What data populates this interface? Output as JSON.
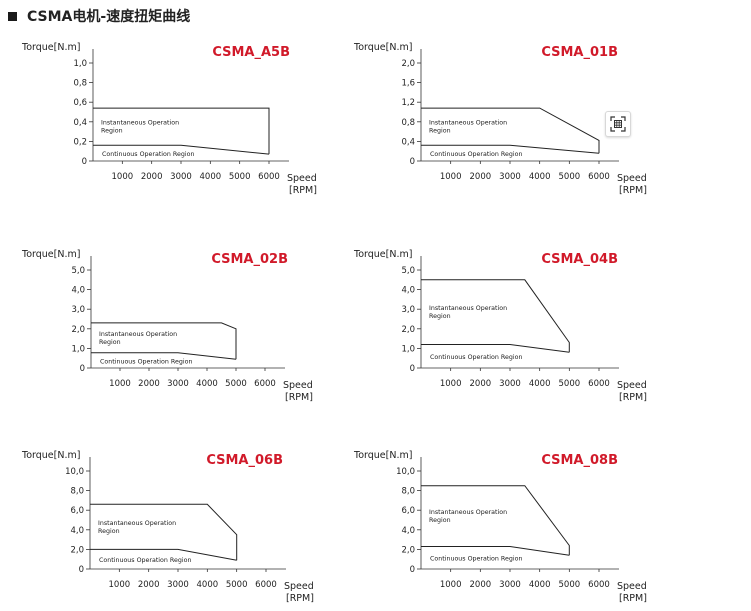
{
  "header": {
    "title": "CSMA电机-速度扭矩曲线"
  },
  "icons": {
    "float_button": "scan-text-icon"
  },
  "chart_data": [
    {
      "type": "line",
      "title": "CSMA_A5B",
      "ylabel": "Torque[N.m]",
      "xlabel": "Speed",
      "xlabel_unit": "[RPM]",
      "x_ticks": [
        "1000",
        "2000",
        "3000",
        "4000",
        "5000",
        "6000"
      ],
      "y_ticks": [
        "0",
        "0,2",
        "0,4",
        "0,6",
        "0,8",
        "1,0"
      ],
      "xlim": [
        0,
        6000
      ],
      "ylim": [
        0,
        1.0
      ],
      "region_labels": [
        "Instantaneous Operation",
        "Region",
        "Continuous Operation Region"
      ],
      "series": [
        {
          "name": "Instantaneous Operation Region",
          "x": [
            0,
            6000,
            6000
          ],
          "y": [
            0.54,
            0.54,
            0.07
          ]
        },
        {
          "name": "Continuous Operation Region",
          "x": [
            0,
            3000,
            6000
          ],
          "y": [
            0.16,
            0.16,
            0.07
          ]
        }
      ]
    },
    {
      "type": "line",
      "title": "CSMA_01B",
      "ylabel": "Torque[N.m]",
      "xlabel": "Speed",
      "xlabel_unit": "[RPM]",
      "x_ticks": [
        "1000",
        "2000",
        "3000",
        "4000",
        "5000",
        "6000"
      ],
      "y_ticks": [
        "0",
        "0,4",
        "0,8",
        "1,2",
        "1,6",
        "2,0"
      ],
      "xlim": [
        0,
        6000
      ],
      "ylim": [
        0,
        2.0
      ],
      "region_labels": [
        "Instantaneous Operation",
        "Region",
        "Continuous Operation Region"
      ],
      "series": [
        {
          "name": "Instantaneous Operation Region",
          "x": [
            0,
            4000,
            6000,
            6000
          ],
          "y": [
            1.08,
            1.08,
            0.42,
            0.16
          ]
        },
        {
          "name": "Continuous Operation Region",
          "x": [
            0,
            3000,
            6000
          ],
          "y": [
            0.32,
            0.32,
            0.16
          ]
        }
      ]
    },
    {
      "type": "line",
      "title": "CSMA_02B",
      "ylabel": "Torque[N.m]",
      "xlabel": "Speed",
      "xlabel_unit": "[RPM]",
      "x_ticks": [
        "1000",
        "2000",
        "3000",
        "4000",
        "5000",
        "6000"
      ],
      "y_ticks": [
        "0",
        "1,0",
        "2,0",
        "3,0",
        "4,0",
        "5,0"
      ],
      "xlim": [
        0,
        6000
      ],
      "ylim": [
        0,
        5.0
      ],
      "region_labels": [
        "Instantaneous Operation",
        "Region",
        "Continuous Operation Region"
      ],
      "series": [
        {
          "name": "Instantaneous Operation Region",
          "x": [
            0,
            4500,
            5000,
            5000
          ],
          "y": [
            2.3,
            2.3,
            2.0,
            0.45
          ]
        },
        {
          "name": "Continuous Operation Region",
          "x": [
            0,
            3000,
            5000
          ],
          "y": [
            0.78,
            0.78,
            0.45
          ]
        }
      ]
    },
    {
      "type": "line",
      "title": "CSMA_04B",
      "ylabel": "Torque[N.m]",
      "xlabel": "Speed",
      "xlabel_unit": "[RPM]",
      "x_ticks": [
        "1000",
        "2000",
        "3000",
        "4000",
        "5000",
        "6000"
      ],
      "y_ticks": [
        "0",
        "1,0",
        "2,0",
        "3,0",
        "4,0",
        "5,0"
      ],
      "xlim": [
        0,
        6000
      ],
      "ylim": [
        0,
        5.0
      ],
      "region_labels": [
        "Instantaneous Operation",
        "Region",
        "Continuous Operation Region"
      ],
      "series": [
        {
          "name": "Instantaneous Operation Region",
          "x": [
            0,
            3500,
            5000,
            5000
          ],
          "y": [
            4.5,
            4.5,
            1.3,
            0.8
          ]
        },
        {
          "name": "Continuous Operation Region",
          "x": [
            0,
            3000,
            5000
          ],
          "y": [
            1.2,
            1.2,
            0.8
          ]
        }
      ]
    },
    {
      "type": "line",
      "title": "CSMA_06B",
      "ylabel": "Torque[N.m]",
      "xlabel": "Speed",
      "xlabel_unit": "[RPM]",
      "x_ticks": [
        "1000",
        "2000",
        "3000",
        "4000",
        "5000",
        "6000"
      ],
      "y_ticks": [
        "0",
        "2,0",
        "4,0",
        "6,0",
        "8,0",
        "10,0"
      ],
      "xlim": [
        0,
        6000
      ],
      "ylim": [
        0,
        10.0
      ],
      "region_labels": [
        "Instantaneous Operation",
        "Region",
        "Continuous Operation Region"
      ],
      "series": [
        {
          "name": "Instantaneous Operation Region",
          "x": [
            0,
            4000,
            5000,
            5000
          ],
          "y": [
            6.6,
            6.6,
            3.5,
            0.9
          ]
        },
        {
          "name": "Continuous Operation Region",
          "x": [
            0,
            3000,
            5000
          ],
          "y": [
            2.0,
            2.0,
            0.9
          ]
        }
      ]
    },
    {
      "type": "line",
      "title": "CSMA_08B",
      "ylabel": "Torque[N.m]",
      "xlabel": "Speed",
      "xlabel_unit": "[RPM]",
      "x_ticks": [
        "1000",
        "2000",
        "3000",
        "4000",
        "5000",
        "6000"
      ],
      "y_ticks": [
        "0",
        "2,0",
        "4,0",
        "6,0",
        "8,0",
        "10,0"
      ],
      "xlim": [
        0,
        6000
      ],
      "ylim": [
        0,
        10.0
      ],
      "region_labels": [
        "Instantaneous Operation",
        "Region",
        "Continuous Operation Region"
      ],
      "series": [
        {
          "name": "Instantaneous Operation Region",
          "x": [
            0,
            3500,
            5000,
            5000
          ],
          "y": [
            8.5,
            8.5,
            2.4,
            1.4
          ]
        },
        {
          "name": "Continuous Operation Region",
          "x": [
            0,
            3000,
            5000
          ],
          "y": [
            2.3,
            2.3,
            1.4
          ]
        }
      ]
    }
  ]
}
